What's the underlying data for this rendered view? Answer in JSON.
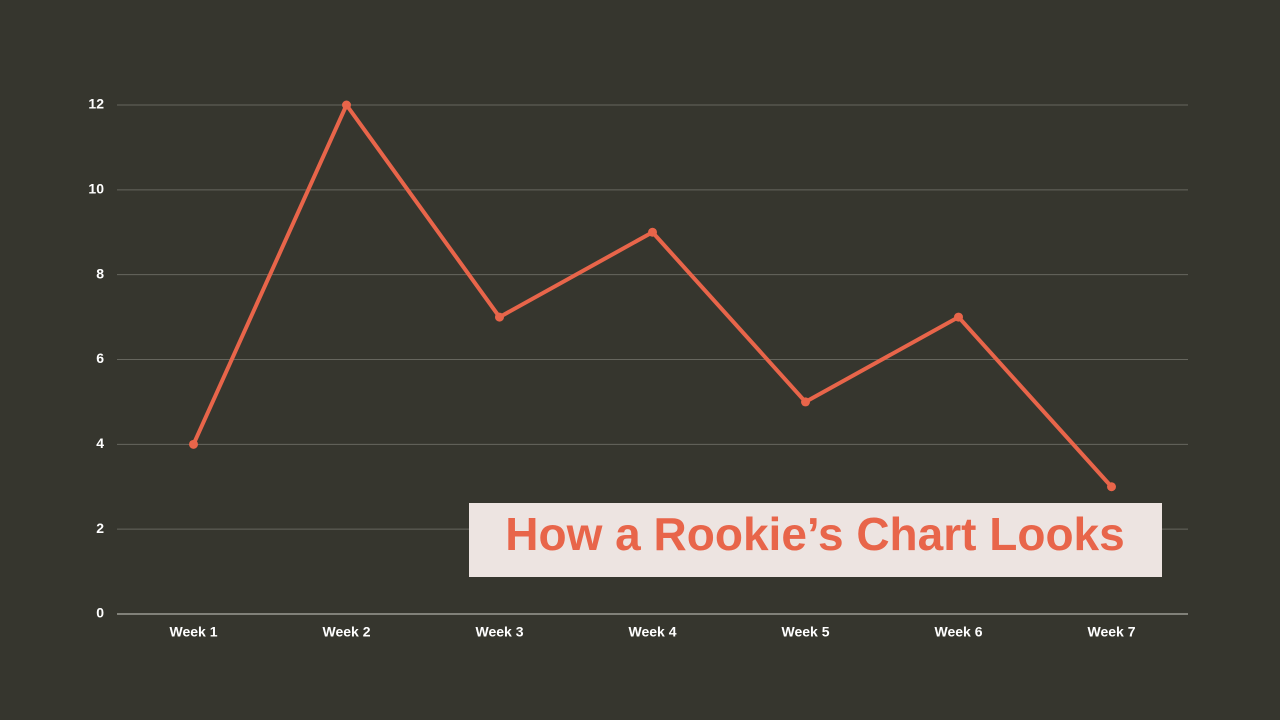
{
  "chart_data": {
    "type": "line",
    "title": "How a Rookie’s Chart Looks",
    "categories": [
      "Week 1",
      "Week 2",
      "Week 3",
      "Week 4",
      "Week 5",
      "Week 6",
      "Week 7"
    ],
    "values": [
      4,
      12,
      7,
      9,
      5,
      7,
      3
    ],
    "color": "#e8654a",
    "ylim": [
      0,
      12
    ],
    "yticks": [
      0,
      2,
      4,
      6,
      8,
      10,
      12
    ],
    "grid": true
  }
}
